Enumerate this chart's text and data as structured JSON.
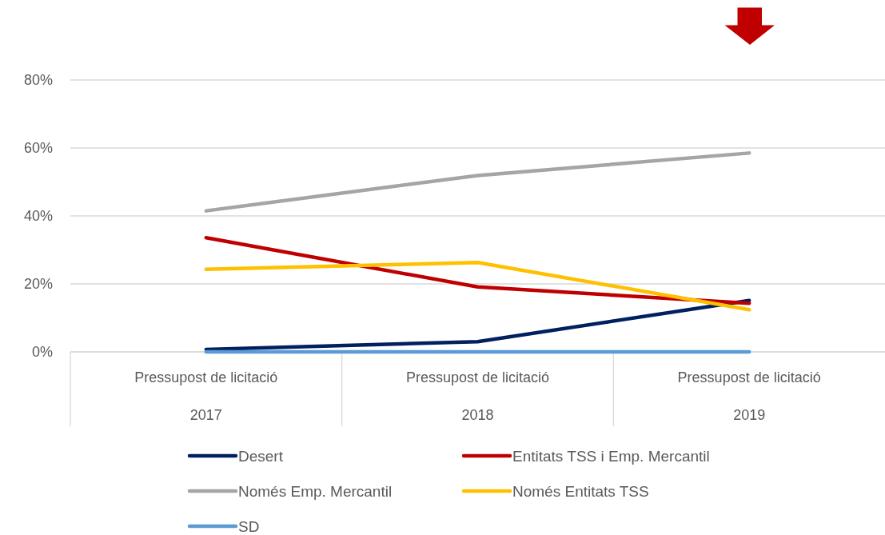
{
  "chart_data": {
    "type": "line",
    "categories": [
      "Pressupost de licitació\n2017",
      "Pressupost de licitació\n2018",
      "Pressupost de licitació\n2019"
    ],
    "series": [
      {
        "name": "Desert",
        "color": "#002060",
        "values": [
          0.7,
          3.0,
          15.1
        ]
      },
      {
        "name": "Entitats TSS i Emp. Mercantil",
        "color": "#c00000",
        "values": [
          33.6,
          19.1,
          14.3
        ]
      },
      {
        "name": "Només Emp. Mercantil",
        "color": "#a5a5a5",
        "values": [
          41.5,
          51.9,
          58.5
        ]
      },
      {
        "name": "Només Entitats TSS",
        "color": "#ffc000",
        "values": [
          24.3,
          26.3,
          12.4
        ]
      },
      {
        "name": "SD",
        "color": "#5b9bd5",
        "values": [
          0,
          0,
          0
        ]
      }
    ],
    "ylim": [
      0,
      80
    ],
    "yticks": [
      {
        "value": 0,
        "label": "0%"
      },
      {
        "value": 20,
        "label": "20%"
      },
      {
        "value": 40,
        "label": "40%"
      },
      {
        "value": 60,
        "label": "60%"
      },
      {
        "value": 80,
        "label": "80%"
      }
    ],
    "grid": "y",
    "legend": "bottom"
  }
}
